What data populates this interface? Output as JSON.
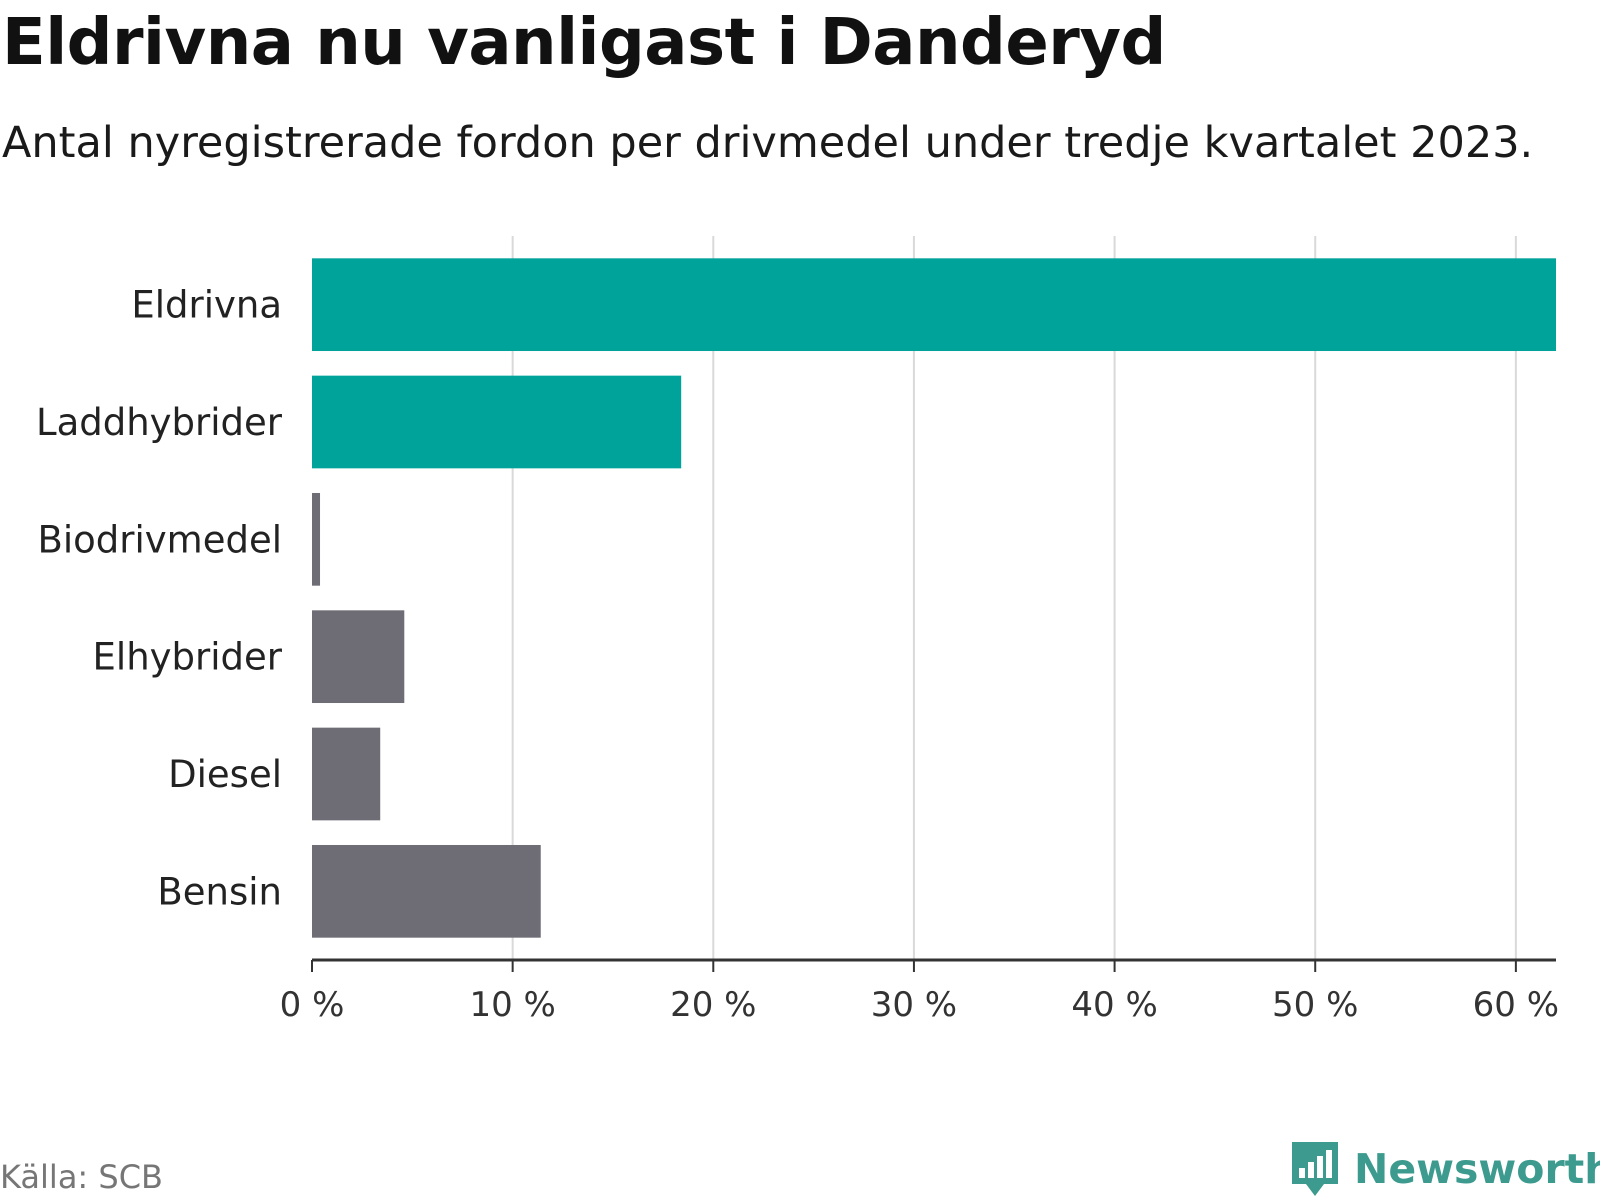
{
  "title": "Eldrivna nu vanligast i Danderyd",
  "subtitle": "Antal nyregistrerade fordon per drivmedel under tredje kvartalet 2023.",
  "source": "Källa: SCB",
  "brand": "Newsworthy",
  "colors": {
    "highlight": "#00a39a",
    "default": "#6e6d75",
    "grid": "#d9d9d9",
    "axis": "#333333",
    "brand": "#3c9a8e"
  },
  "chart_data": {
    "type": "bar",
    "orientation": "horizontal",
    "title": "Eldrivna nu vanligast i Danderyd",
    "subtitle": "Antal nyregistrerade fordon per drivmedel under tredje kvartalet 2023.",
    "categories": [
      "Eldrivna",
      "Laddhybrider",
      "Biodrivmedel",
      "Elhybrider",
      "Diesel",
      "Bensin"
    ],
    "values": [
      62,
      18.4,
      0.4,
      4.6,
      3.4,
      11.4
    ],
    "highlighted": [
      true,
      true,
      false,
      false,
      false,
      false
    ],
    "xlim": [
      0,
      62
    ],
    "xticks": [
      0,
      10,
      20,
      30,
      40,
      50,
      60
    ],
    "xtick_labels": [
      "0 %",
      "10 %",
      "20 %",
      "30 %",
      "40 %",
      "50 %",
      "60 %"
    ],
    "xlabel": "",
    "ylabel": "",
    "grid": true,
    "unit": "%"
  }
}
